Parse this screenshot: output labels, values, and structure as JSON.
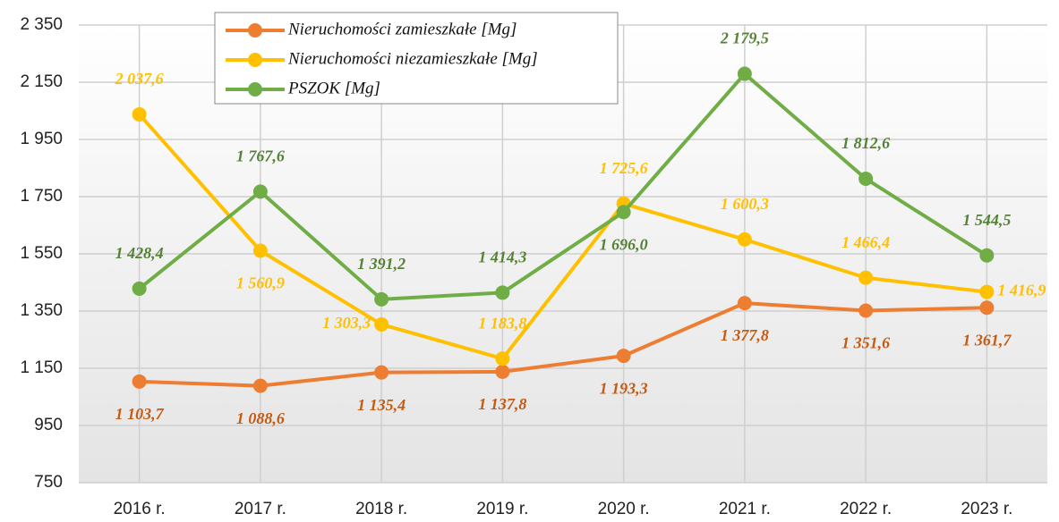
{
  "chart_data": {
    "type": "line",
    "categories": [
      "2016 r.",
      "2017 r.",
      "2018 r.",
      "2019 r.",
      "2020 r.",
      "2021 r.",
      "2022 r.",
      "2023 r."
    ],
    "series": [
      {
        "name": "Nieruchomości zamieszkałe [Mg]",
        "color": "#ed7d31",
        "label_color": "#c55a11",
        "values": [
          1103.7,
          1088.6,
          1135.4,
          1137.8,
          1193.3,
          1377.8,
          1351.6,
          1361.7
        ],
        "value_labels": [
          "1 103,7",
          "1 088,6",
          "1 135,4",
          "1 137,8",
          "1 193,3",
          "1 377,8",
          "1 351,6",
          "1 361,7"
        ]
      },
      {
        "name": "Nieruchomości niezamieszkałe [Mg]",
        "color": "#ffc000",
        "label_color": "#ffc000",
        "values": [
          2037.6,
          1560.9,
          1303.3,
          1183.8,
          1725.6,
          1600.3,
          1466.4,
          1416.9
        ],
        "value_labels": [
          "2 037,6",
          "1 560,9",
          "1 303,3",
          "1 183,8",
          "1 725,6",
          "1 600,3",
          "1 466,4",
          "1 416,9"
        ]
      },
      {
        "name": "PSZOK [Mg]",
        "color": "#70ad47",
        "label_color": "#548235",
        "values": [
          1428.4,
          1767.6,
          1391.2,
          1414.3,
          1696.0,
          2179.5,
          1812.6,
          1544.5
        ],
        "value_labels": [
          "1 428,4",
          "1 767,6",
          "1 391,2",
          "1 414,3",
          "1 696,0",
          "2 179,5",
          "1 812,6",
          "1 544,5"
        ]
      }
    ],
    "ylim": [
      750,
      2350
    ],
    "yticks": [
      {
        "value": 750,
        "label": "750"
      },
      {
        "value": 950,
        "label": "950"
      },
      {
        "value": 1150,
        "label": "1 150"
      },
      {
        "value": 1350,
        "label": "1 350"
      },
      {
        "value": 1550,
        "label": "1 550"
      },
      {
        "value": 1750,
        "label": "1 750"
      },
      {
        "value": 1950,
        "label": "1 950"
      },
      {
        "value": 2150,
        "label": "2 150"
      },
      {
        "value": 2350,
        "label": "2 350"
      }
    ],
    "grid": true,
    "legend": "top-left"
  }
}
